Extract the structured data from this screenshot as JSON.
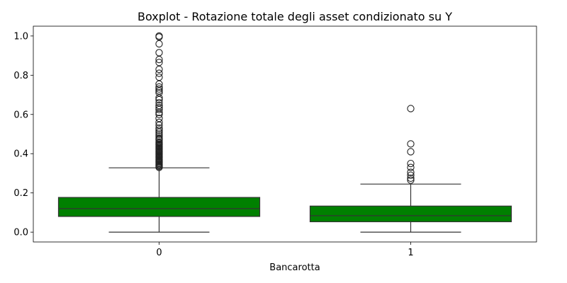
{
  "chart_data": {
    "type": "boxplot",
    "title": "Boxplot - Rotazione totale degli asset condizionato su Y",
    "xlabel": "Bancarotta",
    "ylabel": "",
    "ylim": [
      -0.05,
      1.05
    ],
    "yticks": [
      0.0,
      0.2,
      0.4,
      0.6,
      0.8,
      1.0
    ],
    "ytick_labels": [
      "0.0",
      "0.2",
      "0.4",
      "0.6",
      "0.8",
      "1.0"
    ],
    "categories": [
      "0",
      "1"
    ],
    "grid": false,
    "legend": "none",
    "box_color": "#008000",
    "line_color": "#333333",
    "boxes": [
      {
        "category": "0",
        "whisker_low": 0.0,
        "q1": 0.08,
        "median": 0.12,
        "q3": 0.177,
        "whisker_high": 0.328,
        "outliers": [
          0.33,
          0.335,
          0.34,
          0.345,
          0.35,
          0.355,
          0.36,
          0.365,
          0.37,
          0.375,
          0.38,
          0.385,
          0.39,
          0.395,
          0.4,
          0.405,
          0.41,
          0.415,
          0.42,
          0.425,
          0.43,
          0.435,
          0.44,
          0.445,
          0.45,
          0.455,
          0.46,
          0.47,
          0.475,
          0.48,
          0.49,
          0.5,
          0.51,
          0.52,
          0.53,
          0.545,
          0.56,
          0.58,
          0.6,
          0.61,
          0.625,
          0.635,
          0.645,
          0.66,
          0.675,
          0.685,
          0.71,
          0.72,
          0.73,
          0.74,
          0.755,
          0.79,
          0.81,
          0.83,
          0.865,
          0.88,
          0.915,
          0.96,
          0.995,
          1.0
        ]
      },
      {
        "category": "1",
        "whisker_low": 0.0,
        "q1": 0.053,
        "median": 0.084,
        "q3": 0.133,
        "whisker_high": 0.245,
        "outliers": [
          0.265,
          0.275,
          0.29,
          0.305,
          0.33,
          0.35,
          0.41,
          0.45,
          0.63
        ]
      }
    ]
  }
}
